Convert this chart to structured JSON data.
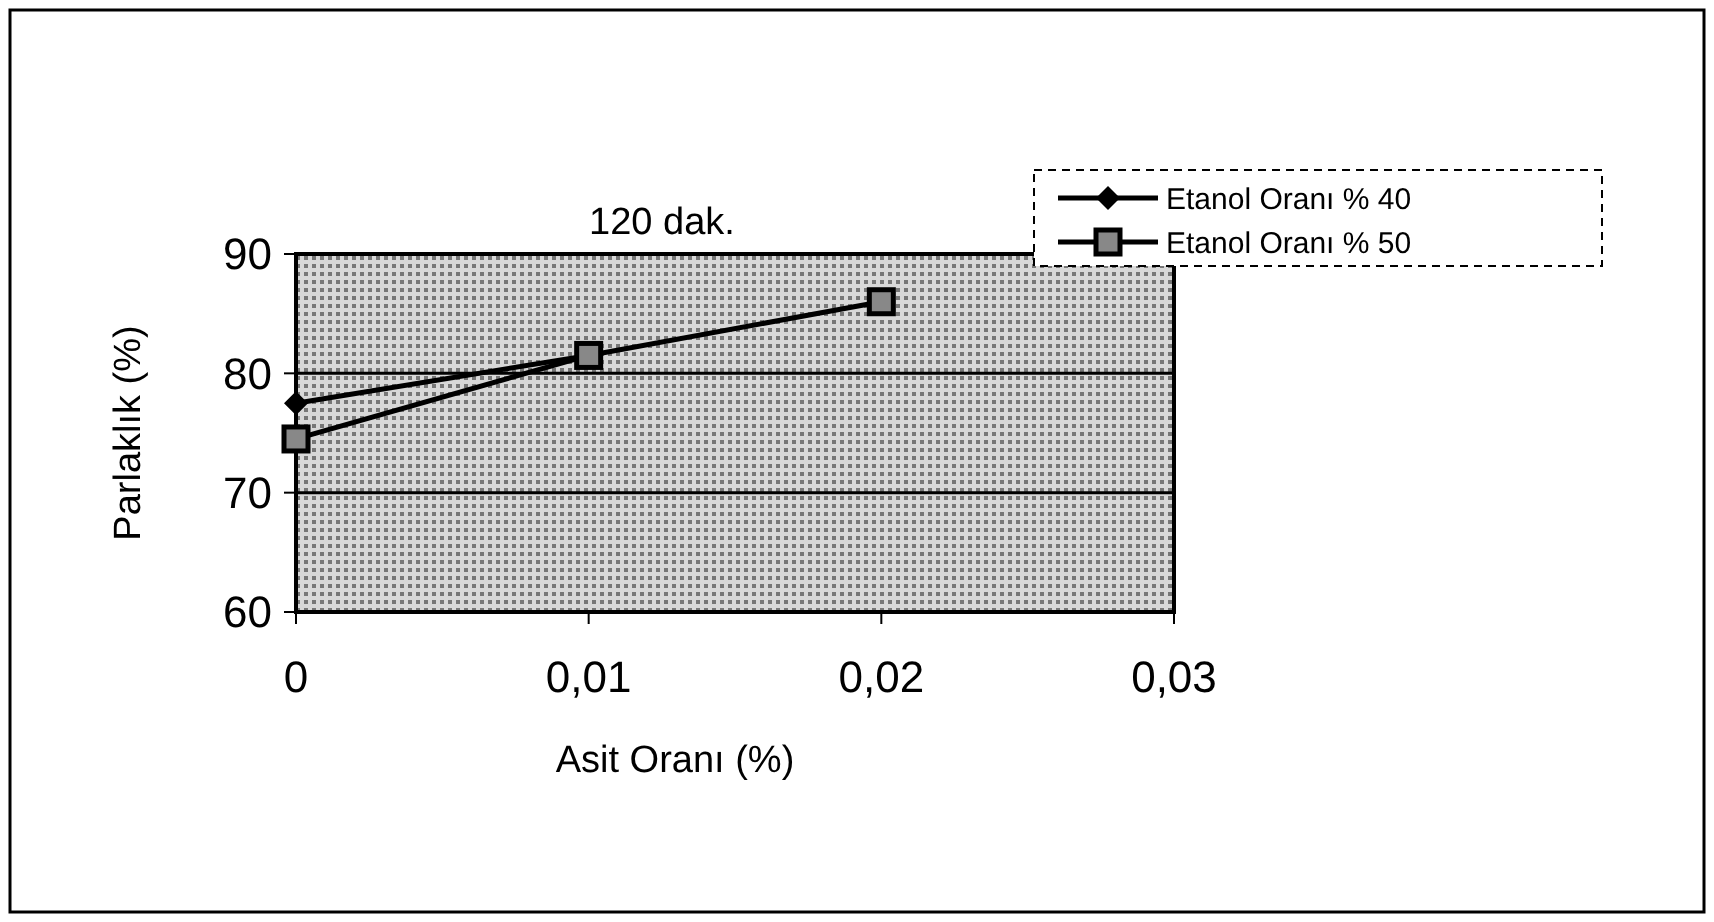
{
  "chart_data": {
    "type": "line",
    "title": "120 dak.",
    "xlabel": "Asit Oranı (%)",
    "ylabel": "Parlaklık (%)",
    "x": [
      0,
      0.01,
      0.02
    ],
    "series": [
      {
        "name": "Etanol Oranı % 40",
        "color": "#000000",
        "marker": "diamond",
        "values": [
          77.5,
          81.5,
          null
        ]
      },
      {
        "name": "Etanol Oranı % 50",
        "color": "#000000",
        "marker": "square",
        "values": [
          74.5,
          81.5,
          86
        ]
      }
    ],
    "xlim": [
      0,
      0.03
    ],
    "xticks": [
      {
        "value": 0,
        "label": "0"
      },
      {
        "value": 0.01,
        "label": "0,01"
      },
      {
        "value": 0.02,
        "label": "0,02"
      },
      {
        "value": 0.03,
        "label": "0,03"
      }
    ],
    "ylim": [
      60,
      90
    ],
    "yticks": [
      60,
      70,
      80,
      90
    ],
    "grid": "y",
    "legend": "top right",
    "line_style": "solid"
  }
}
